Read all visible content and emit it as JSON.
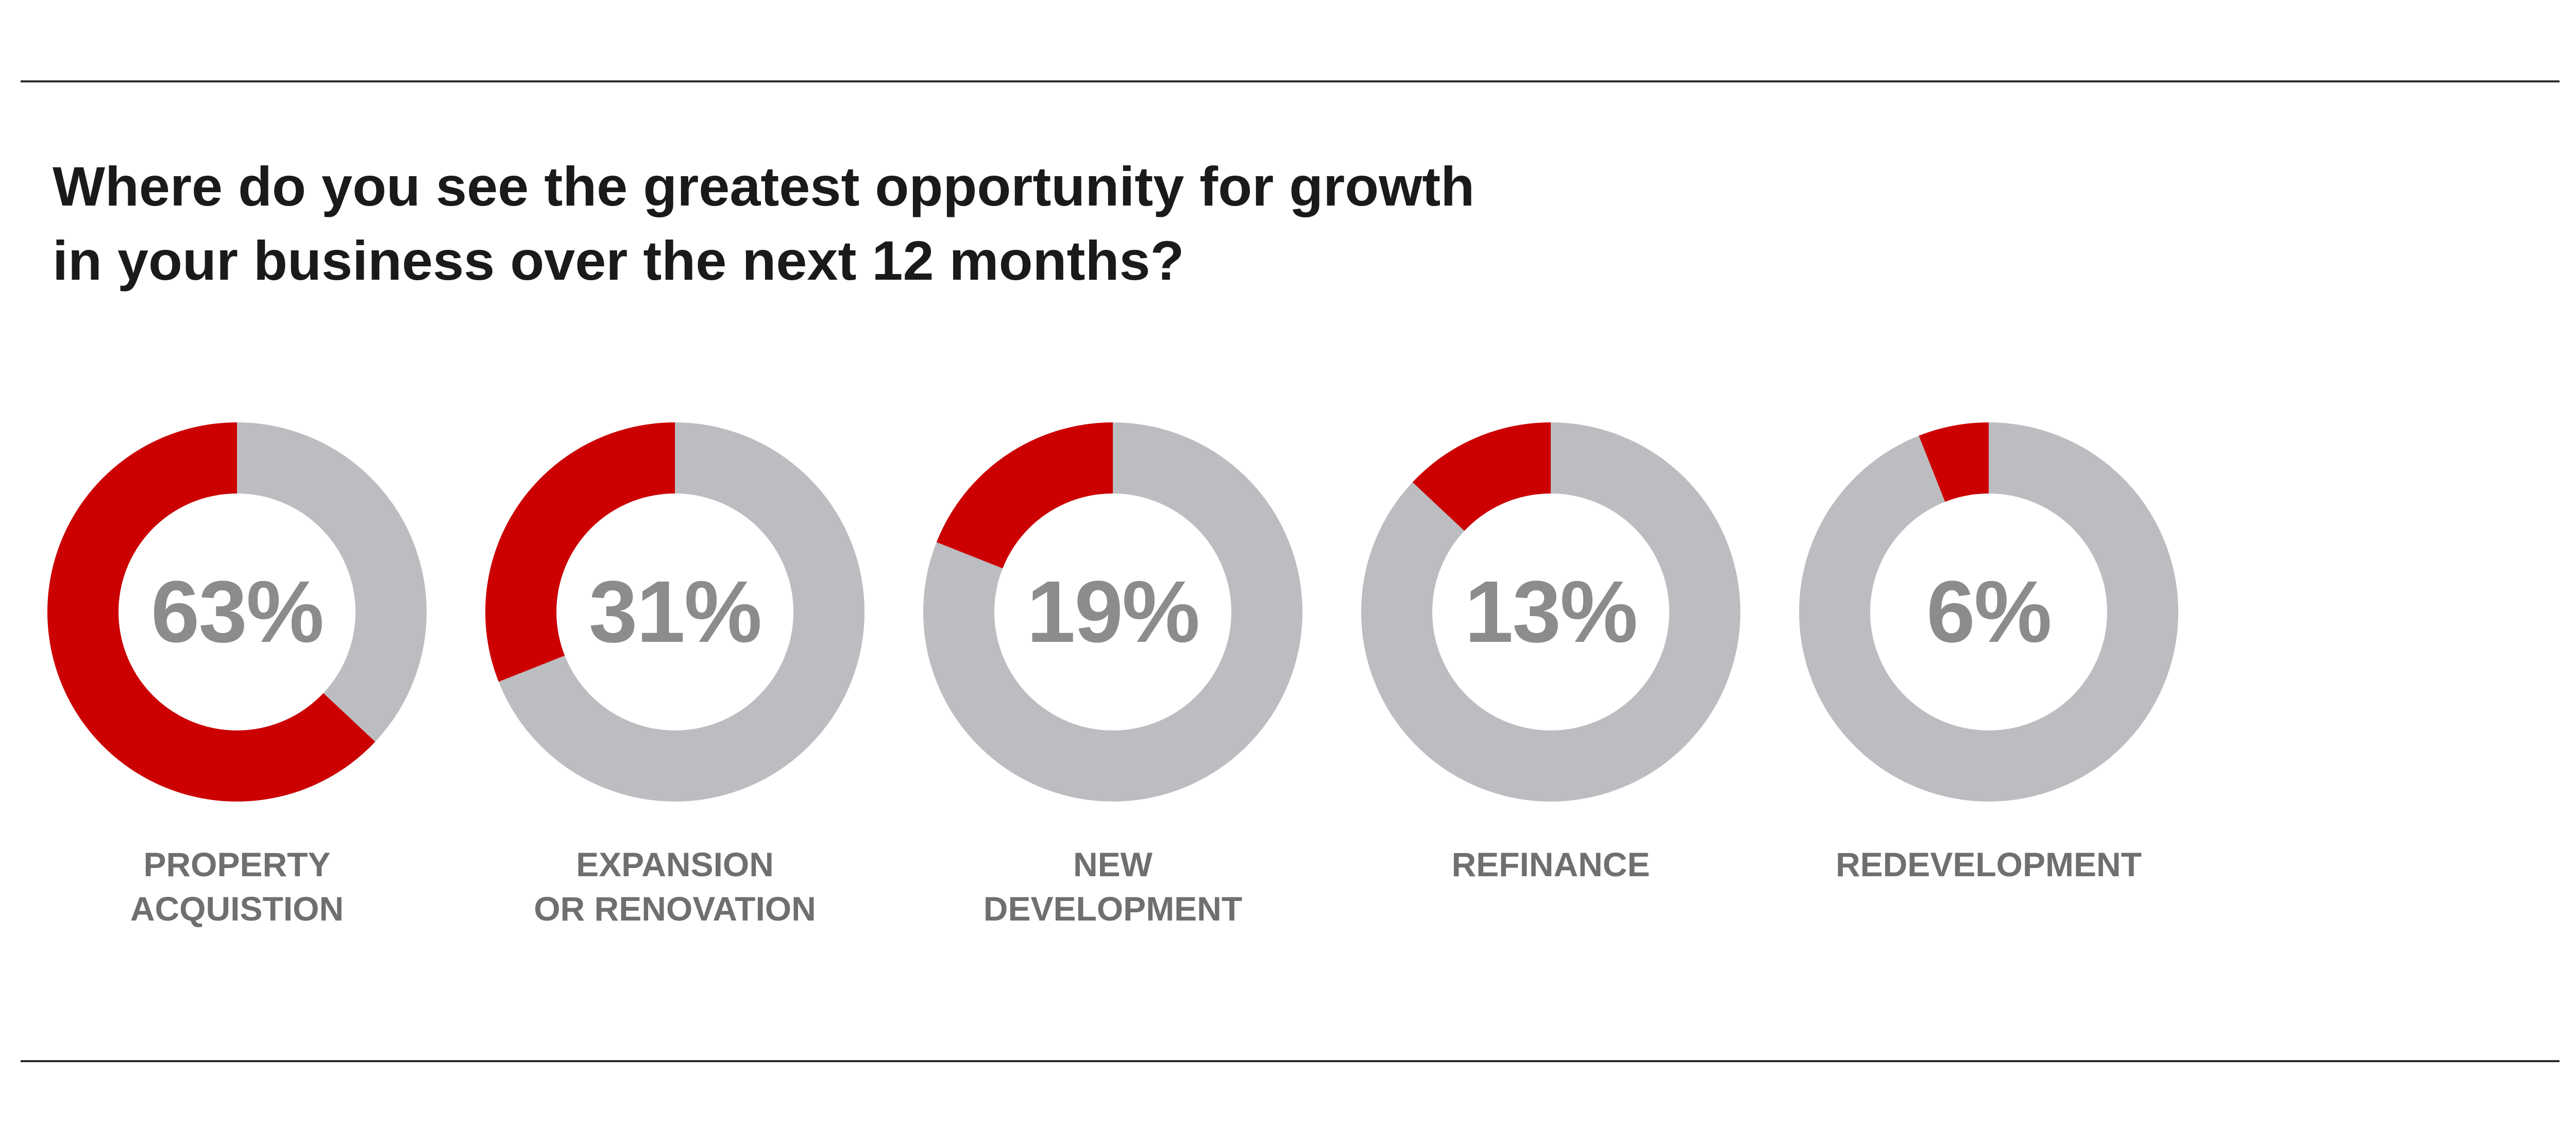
{
  "title_lines": [
    "Where do you see the greatest opportunity for growth",
    "in your business over the next 12 months?"
  ],
  "colors": {
    "highlight": "#cc0000",
    "remainder": "#bcbdc0",
    "percent_text": "#8c8c8e",
    "label_text": "#6f6f71",
    "rule": "#2b2b2b"
  },
  "chart_data": {
    "type": "pie",
    "title": "Where do you see the greatest opportunity for growth in your business over the next 12 months?",
    "unit": "%",
    "series": [
      {
        "label_lines": [
          "PROPERTY",
          "ACQUISTION"
        ],
        "value": 63,
        "display": "63%"
      },
      {
        "label_lines": [
          "EXPANSION",
          "OR RENOVATION"
        ],
        "value": 31,
        "display": "31%"
      },
      {
        "label_lines": [
          "NEW",
          "DEVELOPMENT"
        ],
        "value": 19,
        "display": "19%"
      },
      {
        "label_lines": [
          "REFINANCE"
        ],
        "value": 13,
        "display": "13%"
      },
      {
        "label_lines": [
          "REDEVELOPMENT"
        ],
        "value": 6,
        "display": "6%"
      }
    ]
  }
}
